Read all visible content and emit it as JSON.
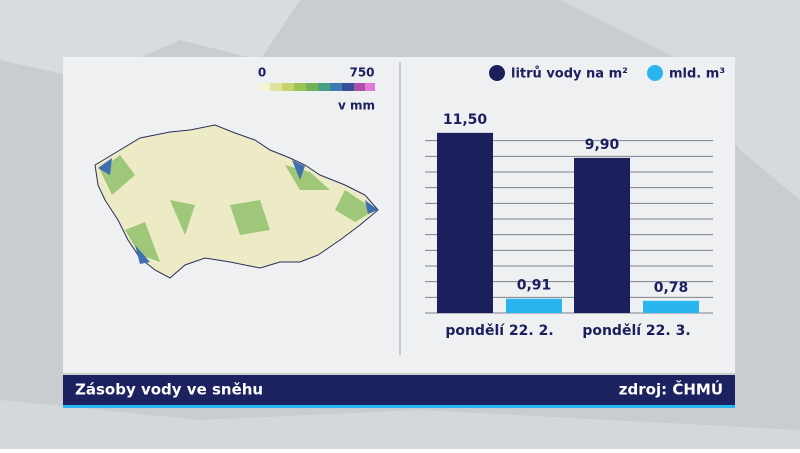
{
  "chart_data": {
    "type": "bar",
    "legend_scale": {
      "min_label": "0",
      "max_label": "750",
      "unit": "v mm"
    },
    "categories": [
      "pondělí 22. 2.",
      "pondělí 22. 3."
    ],
    "series": [
      {
        "name": "litrů vody na m²",
        "color": "#1b1f5c",
        "values": [
          11.5,
          9.9
        ],
        "value_labels": [
          "11,50",
          "9,90"
        ]
      },
      {
        "name": "mld. m³",
        "color": "#2bb5ee",
        "values": [
          0.91,
          0.78
        ],
        "value_labels": [
          "0,91",
          "0,78"
        ]
      }
    ],
    "ylim": [
      0,
      12
    ],
    "yticks": [
      0,
      1,
      2,
      3,
      4,
      5,
      6,
      7,
      8,
      9,
      10,
      11
    ],
    "grid": true,
    "footer": {
      "title": "Zásoby vody ve sněhu",
      "source": "zdroj: ČHMÚ"
    }
  }
}
